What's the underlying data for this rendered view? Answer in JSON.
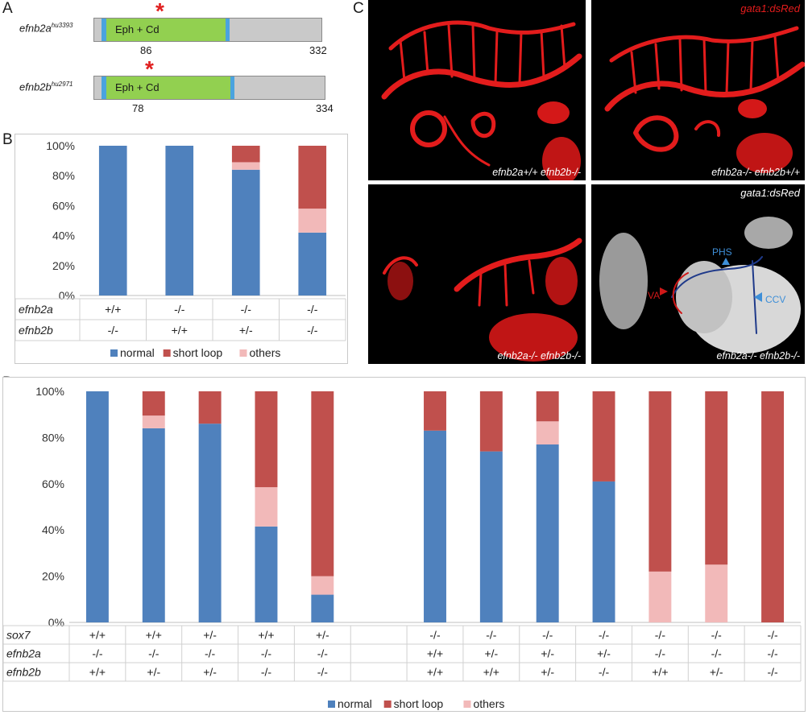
{
  "panels": {
    "a": "A",
    "b": "B",
    "c": "C",
    "d": "D"
  },
  "panelA": {
    "genes": [
      {
        "name": "efnb2a",
        "allele": "hu3393",
        "domain": "Eph + Cd",
        "mutation_pos": "86",
        "length": "332"
      },
      {
        "name": "efnb2b",
        "allele": "hu2971",
        "domain": "Eph + Cd",
        "mutation_pos": "78",
        "length": "334"
      }
    ],
    "star": "*",
    "colors": {
      "domain": "#92d050",
      "cap": "#4aa3df",
      "protein": "#c9c9c9",
      "star": "#e02020"
    }
  },
  "panelC": {
    "images": [
      {
        "caption": "efnb2a+/+ efnb2b-/-",
        "overlay": ""
      },
      {
        "caption": "efnb2a-/- efnb2b+/+",
        "overlay": "gata1:dsRed"
      },
      {
        "caption": "efnb2a-/- efnb2b-/-",
        "overlay": ""
      },
      {
        "caption": "efnb2a-/- efnb2b-/-",
        "overlay": "gata1:dsRed"
      }
    ],
    "vessel_labels": {
      "phs": "PHS",
      "va": "VA",
      "ccv": "CCV"
    }
  },
  "chart_data": [
    {
      "type": "bar",
      "stacked": true,
      "panel": "B",
      "ylim": [
        0,
        100
      ],
      "yticks": [
        "0%",
        "20%",
        "40%",
        "60%",
        "80%",
        "100%"
      ],
      "row_labels": [
        "efnb2a",
        "efnb2b"
      ],
      "categories": [
        [
          "+/+",
          "-/-"
        ],
        [
          "-/-",
          "+/+"
        ],
        [
          "-/-",
          "+/-"
        ],
        [
          "-/-",
          "-/-"
        ]
      ],
      "series": [
        {
          "name": "normal",
          "color": "#4f81bd",
          "values": [
            100,
            100,
            84,
            42
          ]
        },
        {
          "name": "others",
          "color": "#f2b9b9",
          "values": [
            0,
            0,
            5,
            16
          ]
        },
        {
          "name": "short loop",
          "color": "#c0504d",
          "values": [
            0,
            0,
            11,
            42
          ]
        }
      ],
      "legend_order": [
        "normal",
        "short loop",
        "others"
      ],
      "legend": "bottom"
    },
    {
      "type": "bar",
      "stacked": true,
      "panel": "D",
      "ylim": [
        0,
        100
      ],
      "yticks": [
        "0%",
        "20%",
        "40%",
        "60%",
        "80%",
        "100%"
      ],
      "row_labels": [
        "sox7",
        "efnb2a",
        "efnb2b"
      ],
      "categories": [
        [
          "+/+",
          "-/-",
          "+/+"
        ],
        [
          "+/+",
          "-/-",
          "+/-"
        ],
        [
          "+/-",
          "-/-",
          "+/-"
        ],
        [
          "+/+",
          "-/-",
          "-/-"
        ],
        [
          "+/-",
          "-/-",
          "-/-"
        ],
        [
          "",
          "",
          ""
        ],
        [
          "-/-",
          "+/+",
          "+/+"
        ],
        [
          "-/-",
          "+/-",
          "+/+"
        ],
        [
          "-/-",
          "+/-",
          "+/-"
        ],
        [
          "-/-",
          "+/-",
          "-/-"
        ],
        [
          "-/-",
          "-/-",
          "+/+"
        ],
        [
          "-/-",
          "-/-",
          "+/-"
        ],
        [
          "-/-",
          "-/-",
          "-/-"
        ]
      ],
      "series": [
        {
          "name": "normal",
          "color": "#4f81bd",
          "values": [
            100,
            84,
            86,
            41.5,
            12,
            0,
            83,
            74,
            77,
            61,
            0,
            0,
            0
          ]
        },
        {
          "name": "others",
          "color": "#f2b9b9",
          "values": [
            0,
            5.5,
            0,
            17,
            8,
            0,
            0,
            0,
            10,
            0,
            22,
            25,
            0
          ]
        },
        {
          "name": "short loop",
          "color": "#c0504d",
          "values": [
            0,
            10.5,
            14,
            41.5,
            80,
            0,
            17,
            26,
            13,
            39,
            78,
            75,
            100
          ]
        }
      ],
      "legend_order": [
        "normal",
        "short loop",
        "others"
      ],
      "legend": "bottom"
    }
  ]
}
